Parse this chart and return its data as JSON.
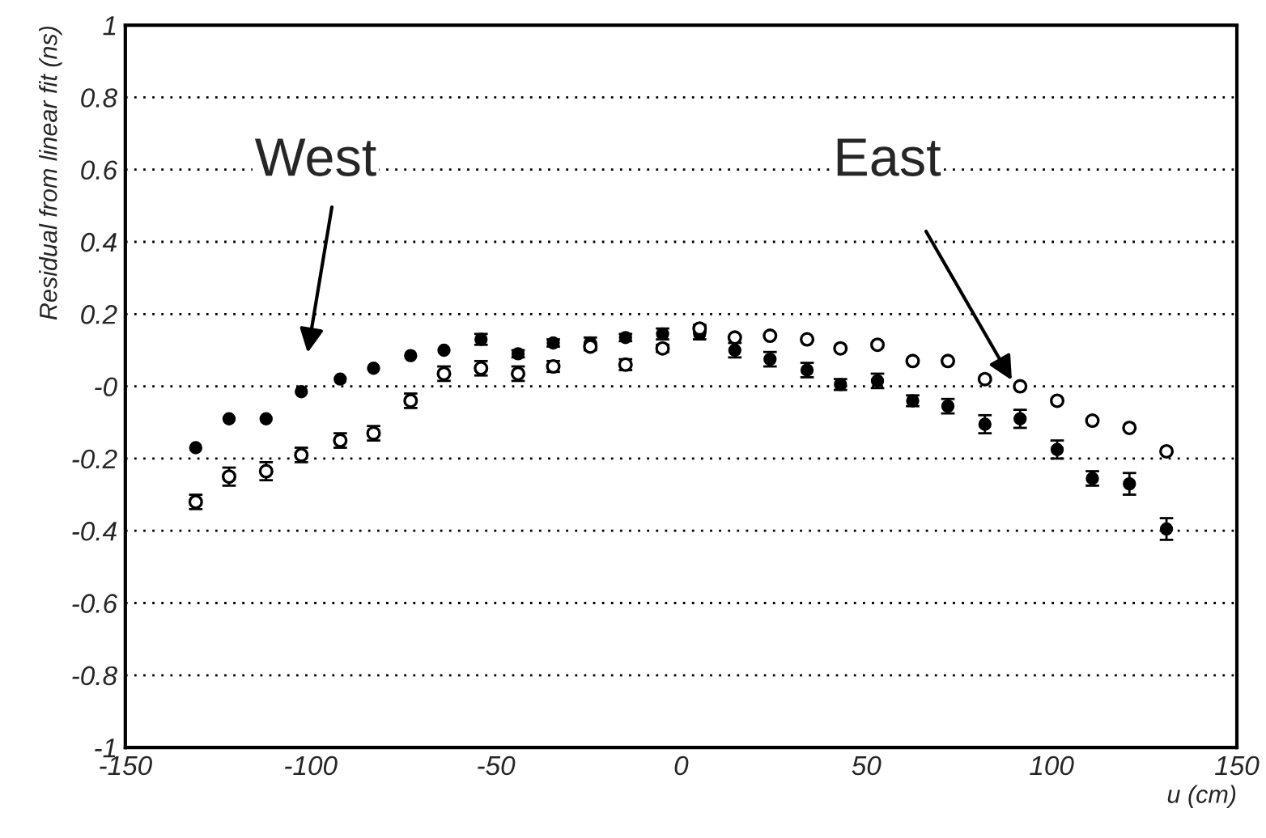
{
  "chart_data": {
    "type": "scatter",
    "xlabel": "u (cm)",
    "ylabel": "Residual from linear fit (ns)",
    "x": [
      -131,
      -122,
      -112,
      -102.5,
      -92,
      -83,
      -73,
      -64,
      -54,
      -44,
      -34.5,
      -24.5,
      -15,
      -5,
      5,
      14.5,
      24,
      34,
      43,
      53,
      62.5,
      72,
      82,
      91.5,
      101.5,
      111,
      121,
      131
    ],
    "series": [
      {
        "color": "#000000",
        "marker": "circle",
        "values": [
          -0.17,
          -0.09,
          -0.09,
          -0.015,
          0.02,
          0.05,
          0.085,
          0.1,
          0.13,
          0.09,
          0.12,
          0.12,
          0.135,
          0.145,
          0.145,
          0.1,
          0.075,
          0.045,
          0.005,
          0.015,
          -0.04,
          -0.055,
          -0.105,
          -0.09,
          -0.175,
          -0.255,
          -0.27,
          -0.395
        ],
        "errors": [
          null,
          null,
          null,
          null,
          null,
          null,
          null,
          null,
          0.015,
          0.01,
          0.01,
          0.015,
          0.01,
          0.015,
          0.015,
          0.02,
          0.02,
          0.02,
          0.015,
          0.02,
          0.015,
          0.02,
          0.025,
          0.025,
          0.025,
          0.02,
          0.03,
          0.03
        ]
      },
      {
        "color": "#000000",
        "marker": "circle",
        "values": [
          -0.32,
          -0.25,
          -0.235,
          -0.19,
          -0.15,
          -0.13,
          -0.04,
          0.035,
          0.05,
          0.035,
          0.055,
          0.11,
          0.06,
          0.105,
          0.16,
          0.135,
          0.14,
          0.13,
          0.105,
          0.115,
          0.07,
          0.07,
          0.02,
          0.0,
          -0.04,
          -0.095,
          -0.115,
          -0.18
        ],
        "errors": [
          0.02,
          0.025,
          0.025,
          0.02,
          0.02,
          0.02,
          0.02,
          0.02,
          0.02,
          0.02,
          0.015,
          0.01,
          0.015,
          0.01,
          0.01,
          null,
          null,
          null,
          null,
          null,
          null,
          null,
          null,
          null,
          null,
          null,
          null,
          null
        ]
      }
    ],
    "xlim": [
      -150,
      150
    ],
    "ylim": [
      -1,
      1
    ],
    "xticks": [
      {
        "value": -150,
        "label": "-150"
      },
      -100,
      -50,
      0,
      50,
      100,
      150
    ],
    "yticks": [
      -1,
      -0.8,
      -0.6,
      -0.4,
      -0.2,
      {
        "value": 0,
        "label": "-0"
      },
      0.2,
      0.4,
      0.6,
      0.8,
      1
    ],
    "grid": "y",
    "annotations": [
      "West",
      "East"
    ]
  }
}
